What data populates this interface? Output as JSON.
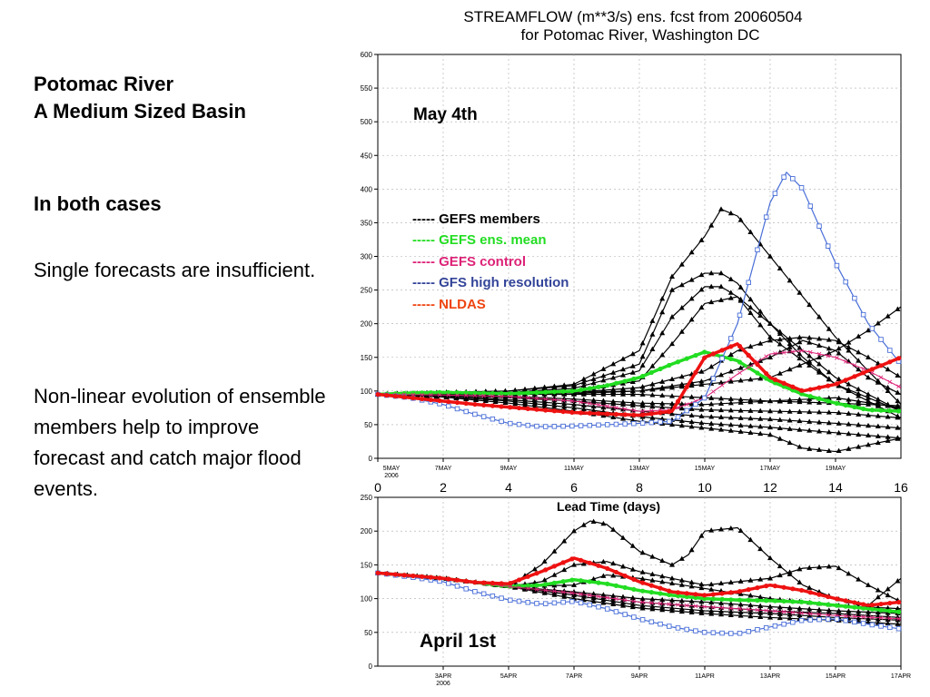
{
  "slide": {
    "title_line1": "Potomac River",
    "title_line2": "A Medium Sized Basin",
    "section_heading": "In both cases",
    "paragraph1": "Single forecasts are insufficient.",
    "paragraph2": "Non-linear evolution of ensemble members help to improve forecast and catch major flood events."
  },
  "colors": {
    "members": "#000000",
    "mean": "#22dd22",
    "control": "#dd2277",
    "gfs_hr": "#4a6fd8",
    "nldas": "#ee1111"
  },
  "chart_data": [
    {
      "type": "line",
      "title": "STREAMFLOW (m**3/s) ens. fcst from 20060504",
      "subtitle": "for Potomac River, Washington DC",
      "panel_label": "May 4th",
      "ylim": [
        0,
        600
      ],
      "yticks": [
        0,
        50,
        100,
        150,
        200,
        250,
        300,
        350,
        400,
        450,
        500,
        550,
        600
      ],
      "xlim": [
        0,
        16
      ],
      "xtick_labels": [
        {
          "x": 0,
          "label": "5MAY",
          "sub": "2006"
        },
        {
          "x": 2,
          "label": "7MAY"
        },
        {
          "x": 4,
          "label": "9MAY"
        },
        {
          "x": 6,
          "label": "11MAY"
        },
        {
          "x": 8,
          "label": "13MAY"
        },
        {
          "x": 10,
          "label": "15MAY"
        },
        {
          "x": 12,
          "label": "17MAY"
        },
        {
          "x": 14,
          "label": "19MAY"
        }
      ],
      "top_axis": {
        "label": "Lead Time  (days)",
        "ticks": [
          0,
          2,
          4,
          6,
          8,
          10,
          12,
          14,
          16
        ]
      },
      "grid": true,
      "legend": [
        {
          "text": "----- GEFS members",
          "color": "#000000"
        },
        {
          "text": "----- GEFS ens. mean",
          "color": "#22dd22"
        },
        {
          "text": "----- GEFS control",
          "color": "#dd2277"
        },
        {
          "text": "----- GFS high resolution",
          "color": "#334499"
        },
        {
          "text": "----- NLDAS",
          "color": "#ee4411"
        }
      ],
      "series": [
        {
          "kind": "member",
          "x": [
            0,
            2,
            4,
            6,
            8,
            9,
            10,
            10.5,
            11,
            12,
            14,
            16
          ],
          "values": [
            95,
            98,
            100,
            110,
            160,
            270,
            330,
            370,
            360,
            300,
            180,
            80
          ]
        },
        {
          "kind": "member",
          "x": [
            0,
            2,
            4,
            6,
            8,
            9,
            10,
            10.5,
            11,
            12,
            14,
            16
          ],
          "values": [
            95,
            97,
            100,
            108,
            140,
            250,
            275,
            275,
            260,
            200,
            120,
            70
          ]
        },
        {
          "kind": "member",
          "x": [
            0,
            2,
            4,
            6,
            8,
            9,
            10,
            10.5,
            11,
            12,
            14,
            16
          ],
          "values": [
            95,
            96,
            98,
            104,
            130,
            210,
            255,
            255,
            240,
            180,
            110,
            60
          ]
        },
        {
          "kind": "member",
          "x": [
            0,
            2,
            4,
            6,
            8,
            9,
            10,
            11,
            12,
            13,
            14,
            16
          ],
          "values": [
            95,
            96,
            97,
            100,
            115,
            170,
            230,
            240,
            200,
            150,
            110,
            70
          ]
        },
        {
          "kind": "member",
          "x": [
            0,
            2,
            4,
            6,
            8,
            10,
            11,
            12,
            13,
            14,
            15,
            16
          ],
          "values": [
            95,
            96,
            97,
            98,
            105,
            130,
            160,
            175,
            180,
            175,
            150,
            120
          ]
        },
        {
          "kind": "member",
          "x": [
            0,
            2,
            4,
            6,
            8,
            10,
            12,
            13,
            14,
            15,
            16
          ],
          "values": [
            95,
            95,
            95,
            96,
            100,
            115,
            150,
            175,
            160,
            120,
            95
          ]
        },
        {
          "kind": "member",
          "x": [
            0,
            2,
            4,
            6,
            8,
            10,
            12,
            14,
            15,
            16
          ],
          "values": [
            95,
            96,
            97,
            98,
            100,
            110,
            120,
            160,
            190,
            225
          ]
        },
        {
          "kind": "member",
          "x": [
            0,
            2,
            4,
            6,
            8,
            10,
            12,
            14,
            16
          ],
          "values": [
            95,
            95,
            95,
            95,
            95,
            90,
            85,
            82,
            78
          ]
        },
        {
          "kind": "member",
          "x": [
            0,
            2,
            4,
            6,
            8,
            10,
            12,
            14,
            16
          ],
          "values": [
            95,
            94,
            92,
            88,
            82,
            80,
            85,
            90,
            75
          ]
        },
        {
          "kind": "member",
          "x": [
            0,
            2,
            4,
            6,
            8,
            10,
            12,
            14,
            16
          ],
          "values": [
            95,
            93,
            90,
            85,
            78,
            72,
            70,
            68,
            60
          ]
        },
        {
          "kind": "member",
          "x": [
            0,
            2,
            4,
            6,
            8,
            10,
            12,
            14,
            16
          ],
          "values": [
            95,
            92,
            87,
            80,
            70,
            62,
            58,
            52,
            45
          ]
        },
        {
          "kind": "member",
          "x": [
            0,
            2,
            4,
            6,
            8,
            10,
            12,
            14,
            16
          ],
          "values": [
            95,
            92,
            85,
            75,
            62,
            52,
            46,
            38,
            30
          ]
        },
        {
          "kind": "member",
          "x": [
            0,
            2,
            4,
            6,
            8,
            10,
            12,
            13,
            14,
            15,
            16
          ],
          "values": [
            95,
            91,
            82,
            70,
            55,
            45,
            35,
            15,
            10,
            20,
            30
          ]
        },
        {
          "kind": "mean",
          "x": [
            0,
            1,
            2,
            3,
            4,
            5,
            6,
            7,
            8,
            9,
            10,
            11,
            12,
            13,
            14,
            15,
            16
          ],
          "values": [
            95,
            97,
            98,
            97,
            96,
            98,
            100,
            108,
            120,
            140,
            158,
            145,
            115,
            95,
            82,
            72,
            70
          ]
        },
        {
          "kind": "control",
          "x": [
            0,
            2,
            4,
            6,
            8,
            9,
            10,
            11,
            12,
            13,
            14,
            15,
            16
          ],
          "values": [
            95,
            94,
            92,
            85,
            70,
            72,
            90,
            125,
            155,
            160,
            150,
            130,
            105
          ]
        },
        {
          "kind": "gfs_hr",
          "x": [
            0,
            1,
            2,
            3,
            4,
            5,
            6,
            7,
            8,
            9,
            10,
            11,
            12,
            12.5,
            13,
            14,
            15,
            16
          ],
          "values": [
            95,
            90,
            80,
            65,
            52,
            47,
            48,
            50,
            52,
            55,
            90,
            200,
            380,
            425,
            400,
            290,
            200,
            140
          ]
        },
        {
          "kind": "nldas",
          "x": [
            0,
            1,
            2,
            3,
            4,
            5,
            6,
            7,
            8,
            9,
            10,
            11,
            12,
            13,
            14,
            15,
            16
          ],
          "values": [
            95,
            90,
            85,
            80,
            76,
            72,
            68,
            66,
            64,
            70,
            150,
            170,
            120,
            100,
            110,
            130,
            150
          ]
        }
      ]
    },
    {
      "type": "line",
      "panel_label": "April 1st",
      "ylim": [
        0,
        250
      ],
      "yticks": [
        0,
        50,
        100,
        150,
        200,
        250
      ],
      "xlim": [
        0,
        16
      ],
      "xtick_labels": [
        {
          "x": 2,
          "label": "3APR",
          "sub": "2006"
        },
        {
          "x": 4,
          "label": "5APR"
        },
        {
          "x": 6,
          "label": "7APR"
        },
        {
          "x": 8,
          "label": "9APR"
        },
        {
          "x": 10,
          "label": "11APR"
        },
        {
          "x": 12,
          "label": "13APR"
        },
        {
          "x": 14,
          "label": "15APR"
        },
        {
          "x": 16,
          "label": "17APR"
        }
      ],
      "grid": true,
      "series": [
        {
          "kind": "member",
          "x": [
            0,
            2,
            4,
            5,
            6,
            6.5,
            7,
            8,
            9,
            9.5,
            10,
            11,
            12,
            13,
            14,
            15,
            16
          ],
          "values": [
            138,
            130,
            118,
            150,
            200,
            215,
            210,
            170,
            150,
            165,
            200,
            205,
            160,
            120,
            100,
            90,
            130
          ]
        },
        {
          "kind": "member",
          "x": [
            0,
            2,
            4,
            5,
            6,
            7,
            8,
            9,
            10,
            11,
            12,
            13,
            14,
            15,
            16
          ],
          "values": [
            138,
            130,
            118,
            125,
            150,
            155,
            140,
            130,
            120,
            125,
            130,
            145,
            148,
            120,
            95
          ]
        },
        {
          "kind": "member",
          "x": [
            0,
            2,
            4,
            6,
            7,
            8,
            10,
            12,
            14,
            16
          ],
          "values": [
            138,
            130,
            118,
            120,
            135,
            130,
            115,
            100,
            90,
            85
          ]
        },
        {
          "kind": "member",
          "x": [
            0,
            2,
            4,
            6,
            8,
            10,
            12,
            14,
            16
          ],
          "values": [
            138,
            130,
            118,
            110,
            100,
            95,
            88,
            82,
            78
          ]
        },
        {
          "kind": "member",
          "x": [
            0,
            2,
            4,
            6,
            8,
            10,
            12,
            14,
            16
          ],
          "values": [
            138,
            130,
            118,
            108,
            95,
            88,
            82,
            78,
            72
          ]
        },
        {
          "kind": "member",
          "x": [
            0,
            2,
            4,
            6,
            8,
            10,
            12,
            14,
            16
          ],
          "values": [
            138,
            130,
            118,
            105,
            90,
            82,
            78,
            72,
            68
          ]
        },
        {
          "kind": "member",
          "x": [
            0,
            2,
            4,
            6,
            8,
            10,
            12,
            14,
            16
          ],
          "values": [
            138,
            130,
            118,
            100,
            86,
            78,
            72,
            68,
            62
          ]
        },
        {
          "kind": "mean",
          "x": [
            0,
            1,
            2,
            3,
            4,
            5,
            6,
            7,
            8,
            9,
            10,
            11,
            12,
            13,
            14,
            15,
            16
          ],
          "values": [
            138,
            134,
            130,
            124,
            118,
            120,
            128,
            122,
            112,
            105,
            100,
            98,
            97,
            95,
            90,
            85,
            80
          ]
        },
        {
          "kind": "control",
          "x": [
            0,
            2,
            4,
            6,
            8,
            10,
            12,
            14,
            16
          ],
          "values": [
            138,
            130,
            118,
            108,
            95,
            88,
            82,
            75,
            70
          ]
        },
        {
          "kind": "gfs_hr",
          "x": [
            0,
            1,
            2,
            3,
            4,
            5,
            6,
            7,
            8,
            9,
            10,
            11,
            12,
            13,
            14,
            15,
            16
          ],
          "values": [
            138,
            132,
            125,
            110,
            98,
            92,
            96,
            85,
            70,
            58,
            50,
            48,
            58,
            68,
            70,
            62,
            55
          ]
        },
        {
          "kind": "nldas",
          "x": [
            0,
            1,
            2,
            3,
            4,
            5,
            6,
            7,
            8,
            9,
            10,
            11,
            12,
            13,
            14,
            15,
            16
          ],
          "values": [
            138,
            134,
            130,
            124,
            122,
            140,
            160,
            145,
            125,
            110,
            105,
            110,
            120,
            112,
            100,
            90,
            95
          ]
        }
      ]
    }
  ]
}
